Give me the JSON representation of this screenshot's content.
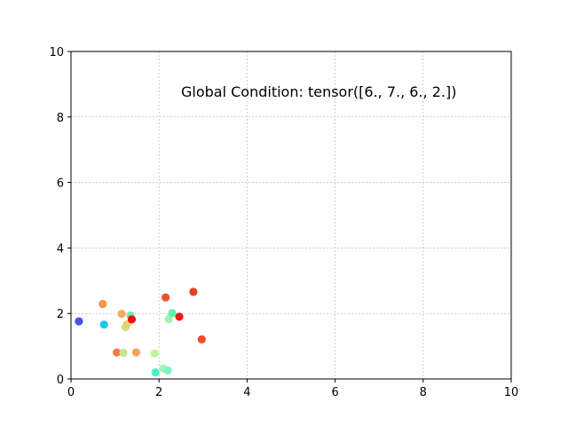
{
  "chart_data": {
    "type": "scatter",
    "annotation": "Global Condition: tensor([6., 7., 6., 2.])",
    "xlim": [
      0,
      10
    ],
    "ylim": [
      0,
      10
    ],
    "x_ticks": [
      0,
      2,
      4,
      6,
      8,
      10
    ],
    "y_ticks": [
      0,
      2,
      4,
      6,
      8,
      10
    ],
    "x_tick_labels": [
      "0",
      "2",
      "4",
      "6",
      "8",
      "10"
    ],
    "y_tick_labels": [
      "0",
      "2",
      "4",
      "6",
      "8",
      "10"
    ],
    "grid": true,
    "points": [
      {
        "x": 0.18,
        "y": 1.76,
        "color": "#4b4fe6"
      },
      {
        "x": 0.72,
        "y": 2.29,
        "color": "#f7944e"
      },
      {
        "x": 0.75,
        "y": 1.66,
        "color": "#1bc8e8"
      },
      {
        "x": 1.04,
        "y": 0.81,
        "color": "#f7794a"
      },
      {
        "x": 1.15,
        "y": 1.99,
        "color": "#f9ac5c"
      },
      {
        "x": 1.19,
        "y": 0.8,
        "color": "#c8e68a"
      },
      {
        "x": 1.24,
        "y": 1.58,
        "color": "#d3e07c"
      },
      {
        "x": 1.27,
        "y": 1.67,
        "color": "#eccc74"
      },
      {
        "x": 1.35,
        "y": 1.94,
        "color": "#6ff0a6"
      },
      {
        "x": 1.38,
        "y": 1.82,
        "color": "#ea1010"
      },
      {
        "x": 1.48,
        "y": 0.81,
        "color": "#f8a257"
      },
      {
        "x": 1.9,
        "y": 0.78,
        "color": "#bdf29c"
      },
      {
        "x": 1.92,
        "y": 0.2,
        "color": "#4bf0c8"
      },
      {
        "x": 2.1,
        "y": 0.32,
        "color": "#a5f5b2"
      },
      {
        "x": 2.15,
        "y": 2.49,
        "color": "#f05232"
      },
      {
        "x": 2.2,
        "y": 0.26,
        "color": "#7df7c2"
      },
      {
        "x": 2.22,
        "y": 1.83,
        "color": "#a2f3b0"
      },
      {
        "x": 2.3,
        "y": 2.01,
        "color": "#5ff2b4"
      },
      {
        "x": 2.46,
        "y": 1.9,
        "color": "#ea1a14"
      },
      {
        "x": 2.78,
        "y": 2.66,
        "color": "#ee3a22"
      },
      {
        "x": 2.97,
        "y": 1.21,
        "color": "#f24a2c"
      }
    ]
  }
}
